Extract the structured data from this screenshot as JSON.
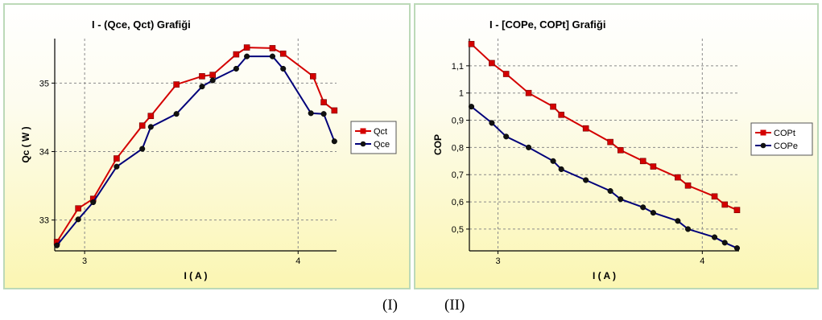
{
  "captions": [
    "(I)",
    "(II)"
  ],
  "chart_data": [
    {
      "type": "line",
      "title": "I - (Qce, Qct)  Grafiği",
      "xlabel": "I  ( A )",
      "ylabel": "Qc  ( W )",
      "xlim": [
        2.86,
        4.18
      ],
      "ylim": [
        32.55,
        35.65
      ],
      "xticks": [
        3,
        4
      ],
      "xtick_labels": [
        "3",
        "4"
      ],
      "yticks": [
        33,
        34,
        35
      ],
      "ytick_labels": [
        "33",
        "34",
        "35"
      ],
      "grid": true,
      "legend": "right",
      "series": [
        {
          "name": "Qct",
          "color": "#d40000",
          "marker": "square",
          "x": [
            2.87,
            2.97,
            3.04,
            3.15,
            3.27,
            3.31,
            3.43,
            3.55,
            3.6,
            3.71,
            3.76,
            3.88,
            3.93,
            4.07,
            4.12,
            4.17
          ],
          "y": [
            32.68,
            33.17,
            33.31,
            33.9,
            34.38,
            34.52,
            34.98,
            35.1,
            35.12,
            35.42,
            35.52,
            35.51,
            35.43,
            35.1,
            34.72,
            34.6
          ]
        },
        {
          "name": "Qce",
          "color": "#00007a",
          "marker": "circle",
          "x": [
            2.87,
            2.97,
            3.04,
            3.15,
            3.27,
            3.31,
            3.43,
            3.55,
            3.6,
            3.71,
            3.76,
            3.88,
            3.93,
            4.06,
            4.12,
            4.17
          ],
          "y": [
            32.63,
            33.01,
            33.26,
            33.78,
            34.04,
            34.36,
            34.55,
            34.95,
            35.04,
            35.21,
            35.39,
            35.39,
            35.21,
            34.56,
            34.55,
            34.15
          ]
        }
      ]
    },
    {
      "type": "line",
      "title": "I - [COPe, COPt]  Grafiği",
      "xlabel": "I  ( A )",
      "ylabel": "COP",
      "xlim": [
        2.86,
        4.18
      ],
      "ylim": [
        0.42,
        1.2
      ],
      "xticks": [
        3,
        4
      ],
      "xtick_labels": [
        "3",
        "4"
      ],
      "yticks": [
        0.5,
        0.6,
        0.7,
        0.8,
        0.9,
        1.0,
        1.1
      ],
      "ytick_labels": [
        "0,5",
        "0,6",
        "0,7",
        "0,8",
        "0,9",
        "1",
        "1,1"
      ],
      "grid": true,
      "legend": "right",
      "series": [
        {
          "name": "COPt",
          "color": "#d40000",
          "marker": "square",
          "x": [
            2.87,
            2.97,
            3.04,
            3.15,
            3.27,
            3.31,
            3.43,
            3.55,
            3.6,
            3.71,
            3.76,
            3.88,
            3.93,
            4.06,
            4.11,
            4.17
          ],
          "y": [
            1.18,
            1.11,
            1.07,
            1.0,
            0.95,
            0.92,
            0.87,
            0.82,
            0.79,
            0.75,
            0.73,
            0.69,
            0.66,
            0.62,
            0.59,
            0.57
          ]
        },
        {
          "name": "COPe",
          "color": "#00007a",
          "marker": "circle",
          "x": [
            2.87,
            2.97,
            3.04,
            3.15,
            3.27,
            3.31,
            3.43,
            3.55,
            3.6,
            3.71,
            3.76,
            3.88,
            3.93,
            4.06,
            4.11,
            4.17
          ],
          "y": [
            0.95,
            0.89,
            0.84,
            0.8,
            0.75,
            0.72,
            0.68,
            0.64,
            0.61,
            0.58,
            0.56,
            0.53,
            0.5,
            0.47,
            0.45,
            0.43
          ]
        }
      ]
    }
  ]
}
